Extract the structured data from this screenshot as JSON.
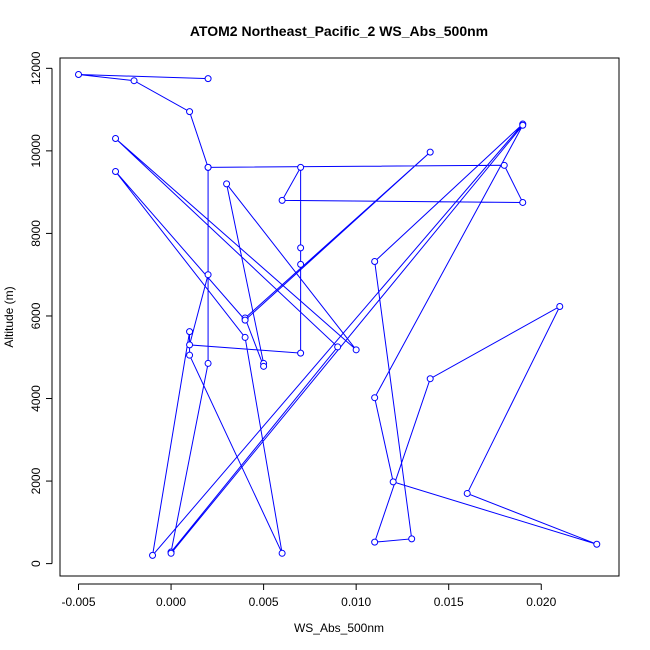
{
  "chart_data": {
    "type": "line",
    "title": "ATOM2 Northeast_Pacific_2 WS_Abs_500nm",
    "xlabel": "WS_Abs_500nm",
    "ylabel": "Altitude (m)",
    "xlim": [
      -0.006,
      0.0242
    ],
    "ylim": [
      -300,
      12250
    ],
    "xticks": [
      -0.005,
      0.0,
      0.005,
      0.01,
      0.015,
      0.02
    ],
    "xtick_labels": [
      "-0.005",
      "0.000",
      "0.005",
      "0.010",
      "0.015",
      "0.020"
    ],
    "yticks": [
      0,
      2000,
      4000,
      6000,
      8000,
      10000,
      12000
    ],
    "ytick_labels": [
      "0",
      "2000",
      "4000",
      "6000",
      "8000",
      "10000",
      "12000"
    ],
    "grid": false,
    "color": "#0000ff",
    "series": [
      {
        "points": [
          {
            "x": 0.002,
            "y": 11750
          },
          {
            "x": -0.005,
            "y": 11850
          },
          {
            "x": -0.002,
            "y": 11700
          },
          {
            "x": 0.001,
            "y": 10950
          },
          {
            "x": 0.002,
            "y": 9600
          },
          {
            "x": 0.002,
            "y": 7000
          },
          {
            "x": 0.001,
            "y": 5300
          },
          {
            "x": 0.007,
            "y": 5100
          },
          {
            "x": 0.007,
            "y": 7650
          },
          {
            "x": 0.007,
            "y": 7250
          },
          {
            "x": 0.007,
            "y": 9600
          },
          {
            "x": 0.006,
            "y": 8800
          },
          {
            "x": 0.019,
            "y": 8750
          },
          {
            "x": 0.018,
            "y": 9650
          },
          {
            "x": 0.002,
            "y": 9600
          },
          {
            "x": 0.002,
            "y": 4850
          },
          {
            "x": 0.0,
            "y": 280
          },
          {
            "x": 0.009,
            "y": 5250
          },
          {
            "x": -0.003,
            "y": 10300
          },
          {
            "x": 0.01,
            "y": 5180
          },
          {
            "x": 0.003,
            "y": 9200
          },
          {
            "x": 0.005,
            "y": 4850
          },
          {
            "x": 0.005,
            "y": 4780
          },
          {
            "x": 0.004,
            "y": 5950
          },
          {
            "x": 0.014,
            "y": 9970
          },
          {
            "x": 0.004,
            "y": 5900
          },
          {
            "x": -0.003,
            "y": 9500
          },
          {
            "x": 0.004,
            "y": 5480
          },
          {
            "x": 0.006,
            "y": 250
          },
          {
            "x": 0.001,
            "y": 5050
          },
          {
            "x": 0.001,
            "y": 5620
          },
          {
            "x": -0.001,
            "y": 200
          },
          {
            "x": 0.019,
            "y": 10650
          },
          {
            "x": 0.011,
            "y": 7320
          },
          {
            "x": 0.013,
            "y": 600
          },
          {
            "x": 0.011,
            "y": 520
          },
          {
            "x": 0.014,
            "y": 4480
          },
          {
            "x": 0.021,
            "y": 6230
          },
          {
            "x": 0.016,
            "y": 1700
          },
          {
            "x": 0.023,
            "y": 470
          },
          {
            "x": 0.012,
            "y": 1980
          },
          {
            "x": 0.011,
            "y": 4020
          },
          {
            "x": 0.019,
            "y": 10620
          },
          {
            "x": 0.0,
            "y": 250
          }
        ]
      }
    ]
  }
}
